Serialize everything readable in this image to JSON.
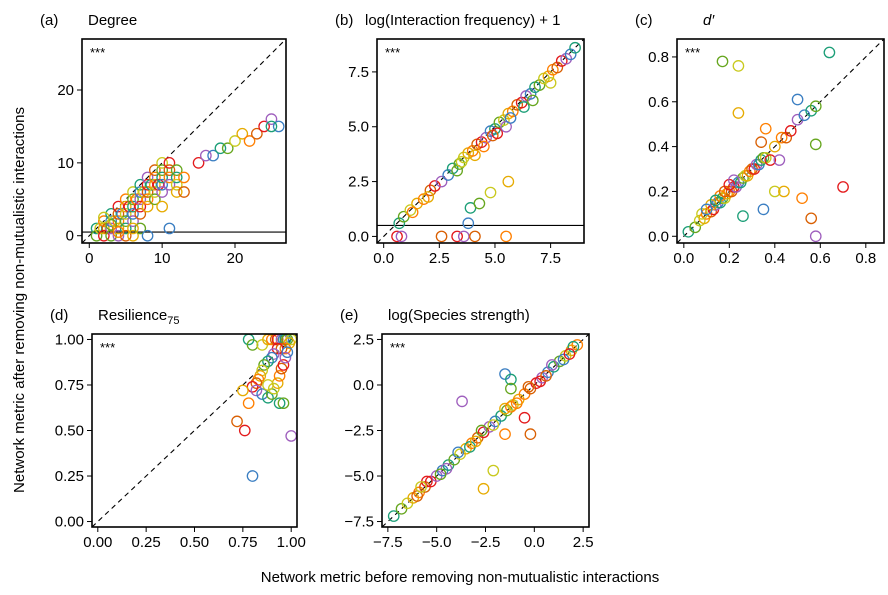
{
  "figure": {
    "xlabel": "Network metric before removing non-mutualistic interactions",
    "ylabel": "Network metric after removing non-mutualistic interactions"
  },
  "colors": [
    "#1b9e77",
    "#66a61e",
    "#c9c91e",
    "#e6ab02",
    "#ff7f00",
    "#d95f02",
    "#e31a1c",
    "#9e5ebd",
    "#3a7ec2"
  ],
  "chart_data": [
    {
      "type": "scatter",
      "panel": "(a)",
      "title": "Degree",
      "significance": "***",
      "xlim": [
        -1,
        27
      ],
      "ylim": [
        -1,
        27
      ],
      "xticks": [
        0,
        10,
        20
      ],
      "yticks": [
        0,
        10,
        20
      ],
      "reference_line": {
        "style": "dashed",
        "slope": 1,
        "intercept": 0
      },
      "hline": 0.5,
      "points": [
        [
          1,
          1
        ],
        [
          1,
          0
        ],
        [
          1.5,
          1
        ],
        [
          2,
          1
        ],
        [
          2,
          2
        ],
        [
          2.5,
          1
        ],
        [
          2,
          0
        ],
        [
          3,
          1
        ],
        [
          3,
          2
        ],
        [
          3,
          3
        ],
        [
          3,
          0
        ],
        [
          3.5,
          2
        ],
        [
          4,
          1
        ],
        [
          4,
          2
        ],
        [
          4,
          3
        ],
        [
          4,
          4
        ],
        [
          4,
          0
        ],
        [
          4.5,
          3
        ],
        [
          5,
          1
        ],
        [
          5,
          2
        ],
        [
          5,
          3
        ],
        [
          5,
          4
        ],
        [
          5,
          5
        ],
        [
          5,
          0
        ],
        [
          5.5,
          4
        ],
        [
          6,
          2
        ],
        [
          6,
          3
        ],
        [
          6,
          4
        ],
        [
          6,
          5
        ],
        [
          6,
          6
        ],
        [
          6,
          0
        ],
        [
          6.5,
          5
        ],
        [
          7,
          3
        ],
        [
          7,
          4
        ],
        [
          7,
          5
        ],
        [
          7,
          6
        ],
        [
          7,
          7
        ],
        [
          7,
          1
        ],
        [
          7.5,
          6
        ],
        [
          8,
          4
        ],
        [
          8,
          5
        ],
        [
          8,
          6
        ],
        [
          8,
          7
        ],
        [
          8,
          8
        ],
        [
          8,
          0
        ],
        [
          8.5,
          7
        ],
        [
          9,
          5
        ],
        [
          9,
          6
        ],
        [
          9,
          7
        ],
        [
          9,
          8
        ],
        [
          9,
          9
        ],
        [
          9.5,
          7
        ],
        [
          10,
          6
        ],
        [
          10,
          7
        ],
        [
          10,
          8
        ],
        [
          10,
          9
        ],
        [
          10,
          10
        ],
        [
          10,
          4
        ],
        [
          11,
          8
        ],
        [
          11,
          9
        ],
        [
          11,
          10
        ],
        [
          11,
          7
        ],
        [
          11,
          1
        ],
        [
          12,
          8
        ],
        [
          12,
          9
        ],
        [
          12,
          7
        ],
        [
          12,
          6
        ],
        [
          13,
          8
        ],
        [
          13,
          6
        ],
        [
          15,
          10
        ],
        [
          16,
          11
        ],
        [
          17,
          11
        ],
        [
          18,
          12
        ],
        [
          19,
          12
        ],
        [
          20,
          13
        ],
        [
          21,
          14
        ],
        [
          22,
          13
        ],
        [
          23,
          14
        ],
        [
          24,
          15
        ],
        [
          25,
          16
        ],
        [
          26,
          15
        ],
        [
          25,
          15
        ],
        [
          3,
          1.5
        ],
        [
          2,
          2.5
        ],
        [
          6,
          1
        ],
        [
          4,
          0.5
        ]
      ]
    },
    {
      "type": "scatter",
      "panel": "(b)",
      "title": "log(Interaction frequency) + 1",
      "significance": "***",
      "xlim": [
        -0.3,
        9
      ],
      "ylim": [
        -0.3,
        9
      ],
      "xticks": [
        0.0,
        2.5,
        5.0,
        7.5
      ],
      "yticks": [
        0.0,
        2.5,
        5.0,
        7.5
      ],
      "reference_line": {
        "style": "dashed",
        "slope": 1,
        "intercept": 0
      },
      "hline": 0.5,
      "points": [
        [
          0.7,
          0.6
        ],
        [
          0.9,
          0.9
        ],
        [
          1.2,
          1.2
        ],
        [
          1.5,
          1.5
        ],
        [
          1.8,
          1.7
        ],
        [
          2.1,
          2.1
        ],
        [
          2.3,
          2.3
        ],
        [
          2.6,
          2.5
        ],
        [
          2.9,
          2.8
        ],
        [
          3.1,
          3.1
        ],
        [
          3.4,
          3.3
        ],
        [
          3.6,
          3.6
        ],
        [
          3.8,
          3.8
        ],
        [
          4.0,
          3.9
        ],
        [
          4.2,
          4.2
        ],
        [
          4.4,
          4.3
        ],
        [
          4.6,
          4.5
        ],
        [
          4.8,
          4.8
        ],
        [
          5.0,
          4.9
        ],
        [
          5.2,
          5.2
        ],
        [
          5.4,
          5.3
        ],
        [
          5.6,
          5.6
        ],
        [
          5.8,
          5.7
        ],
        [
          6.0,
          6.0
        ],
        [
          6.2,
          6.1
        ],
        [
          6.4,
          6.4
        ],
        [
          6.6,
          6.5
        ],
        [
          6.8,
          6.8
        ],
        [
          7.0,
          6.9
        ],
        [
          7.2,
          7.2
        ],
        [
          7.4,
          7.3
        ],
        [
          7.6,
          7.6
        ],
        [
          7.8,
          7.7
        ],
        [
          8.0,
          8.0
        ],
        [
          8.2,
          8.1
        ],
        [
          8.4,
          8.3
        ],
        [
          8.6,
          8.6
        ],
        [
          3.3,
          3.0
        ],
        [
          3.5,
          3.4
        ],
        [
          4.1,
          3.7
        ],
        [
          4.5,
          4.1
        ],
        [
          4.9,
          4.6
        ],
        [
          5.1,
          4.7
        ],
        [
          5.5,
          5.0
        ],
        [
          5.7,
          5.4
        ],
        [
          6.3,
          5.9
        ],
        [
          6.7,
          6.2
        ],
        [
          7.5,
          7.0
        ],
        [
          2.0,
          1.8
        ],
        [
          1.3,
          1.1
        ],
        [
          2.6,
          0.0
        ],
        [
          3.3,
          0.0
        ],
        [
          3.6,
          0.0
        ],
        [
          3.8,
          0.6
        ],
        [
          3.9,
          1.3
        ],
        [
          4.3,
          1.5
        ],
        [
          4.8,
          2.0
        ],
        [
          5.6,
          2.5
        ],
        [
          5.5,
          0.0
        ],
        [
          4.1,
          0.0
        ],
        [
          0.6,
          0.0
        ],
        [
          0.8,
          0.0
        ]
      ]
    },
    {
      "type": "scatter",
      "panel": "(c)",
      "title": "d′",
      "significance": "***",
      "xlim": [
        -0.03,
        0.88
      ],
      "ylim": [
        -0.03,
        0.88
      ],
      "xticks": [
        0.0,
        0.2,
        0.4,
        0.6,
        0.8
      ],
      "yticks": [
        0.0,
        0.2,
        0.4,
        0.6,
        0.8
      ],
      "reference_line": {
        "style": "dashed",
        "slope": 1,
        "intercept": 0
      },
      "points": [
        [
          0.02,
          0.02
        ],
        [
          0.05,
          0.04
        ],
        [
          0.07,
          0.07
        ],
        [
          0.09,
          0.08
        ],
        [
          0.1,
          0.1
        ],
        [
          0.12,
          0.11
        ],
        [
          0.13,
          0.12
        ],
        [
          0.14,
          0.14
        ],
        [
          0.15,
          0.15
        ],
        [
          0.16,
          0.15
        ],
        [
          0.17,
          0.17
        ],
        [
          0.18,
          0.17
        ],
        [
          0.19,
          0.19
        ],
        [
          0.2,
          0.2
        ],
        [
          0.21,
          0.2
        ],
        [
          0.22,
          0.22
        ],
        [
          0.23,
          0.22
        ],
        [
          0.24,
          0.24
        ],
        [
          0.25,
          0.24
        ],
        [
          0.26,
          0.26
        ],
        [
          0.27,
          0.27
        ],
        [
          0.28,
          0.27
        ],
        [
          0.29,
          0.29
        ],
        [
          0.3,
          0.3
        ],
        [
          0.31,
          0.3
        ],
        [
          0.32,
          0.32
        ],
        [
          0.33,
          0.32
        ],
        [
          0.34,
          0.34
        ],
        [
          0.35,
          0.35
        ],
        [
          0.36,
          0.35
        ],
        [
          0.4,
          0.4
        ],
        [
          0.43,
          0.44
        ],
        [
          0.45,
          0.44
        ],
        [
          0.47,
          0.47
        ],
        [
          0.5,
          0.52
        ],
        [
          0.53,
          0.54
        ],
        [
          0.56,
          0.56
        ],
        [
          0.58,
          0.58
        ],
        [
          0.08,
          0.1
        ],
        [
          0.12,
          0.14
        ],
        [
          0.16,
          0.18
        ],
        [
          0.18,
          0.2
        ],
        [
          0.2,
          0.23
        ],
        [
          0.22,
          0.25
        ],
        [
          0.1,
          0.12
        ],
        [
          0.14,
          0.16
        ],
        [
          0.17,
          0.78
        ],
        [
          0.24,
          0.76
        ],
        [
          0.24,
          0.55
        ],
        [
          0.36,
          0.48
        ],
        [
          0.34,
          0.42
        ],
        [
          0.38,
          0.34
        ],
        [
          0.42,
          0.34
        ],
        [
          0.5,
          0.61
        ],
        [
          0.64,
          0.82
        ],
        [
          0.58,
          0.41
        ],
        [
          0.4,
          0.2
        ],
        [
          0.44,
          0.2
        ],
        [
          0.52,
          0.17
        ],
        [
          0.56,
          0.08
        ],
        [
          0.7,
          0.22
        ],
        [
          0.58,
          0.0
        ],
        [
          0.35,
          0.12
        ],
        [
          0.26,
          0.09
        ]
      ]
    },
    {
      "type": "scatter",
      "panel": "(d)",
      "title": "Resilience",
      "title_subscript": "75",
      "significance": "***",
      "xlim": [
        -0.03,
        1.03
      ],
      "ylim": [
        -0.03,
        1.03
      ],
      "xticks": [
        0.0,
        0.25,
        0.5,
        0.75,
        1.0
      ],
      "yticks": [
        0.0,
        0.25,
        0.5,
        0.75,
        1.0
      ],
      "reference_line": {
        "style": "dashed",
        "slope": 1,
        "intercept": 0
      },
      "points": [
        [
          0.78,
          1.0
        ],
        [
          0.8,
          0.97
        ],
        [
          0.85,
          0.97
        ],
        [
          0.88,
          1.0
        ],
        [
          0.9,
          1.0
        ],
        [
          0.92,
          1.0
        ],
        [
          0.93,
          1.0
        ],
        [
          0.95,
          1.0
        ],
        [
          0.96,
          1.0
        ],
        [
          0.97,
          1.0
        ],
        [
          0.98,
          1.0
        ],
        [
          1.0,
          1.0
        ],
        [
          0.99,
          0.98
        ],
        [
          0.97,
          0.95
        ],
        [
          0.95,
          0.95
        ],
        [
          0.93,
          0.95
        ],
        [
          0.91,
          0.92
        ],
        [
          0.9,
          0.9
        ],
        [
          0.88,
          0.88
        ],
        [
          0.86,
          0.86
        ],
        [
          0.85,
          0.83
        ],
        [
          0.84,
          0.8
        ],
        [
          0.83,
          0.78
        ],
        [
          0.82,
          0.76
        ],
        [
          0.8,
          0.74
        ],
        [
          0.82,
          0.72
        ],
        [
          0.85,
          0.7
        ],
        [
          0.88,
          0.68
        ],
        [
          0.9,
          0.7
        ],
        [
          0.91,
          0.73
        ],
        [
          0.93,
          0.76
        ],
        [
          0.94,
          0.8
        ],
        [
          0.95,
          0.84
        ],
        [
          0.96,
          0.86
        ],
        [
          0.97,
          0.9
        ],
        [
          0.98,
          0.93
        ],
        [
          0.94,
          0.65
        ],
        [
          0.96,
          0.65
        ],
        [
          0.88,
          0.75
        ],
        [
          0.75,
          0.72
        ],
        [
          0.78,
          0.65
        ],
        [
          0.72,
          0.55
        ],
        [
          0.76,
          0.5
        ],
        [
          1.0,
          0.47
        ],
        [
          0.8,
          0.25
        ]
      ]
    },
    {
      "type": "scatter",
      "panel": "(e)",
      "title": "log(Species strength)",
      "significance": "***",
      "xlim": [
        -7.8,
        2.8
      ],
      "ylim": [
        -7.8,
        2.8
      ],
      "xticks": [
        -7.5,
        -5.0,
        -2.5,
        0.0,
        2.5
      ],
      "yticks": [
        -7.5,
        -5.0,
        -2.5,
        0.0,
        2.5
      ],
      "reference_line": {
        "style": "dashed",
        "slope": 1,
        "intercept": 0
      },
      "points": [
        [
          -7.2,
          -7.2
        ],
        [
          -6.8,
          -6.8
        ],
        [
          -6.5,
          -6.5
        ],
        [
          -6.2,
          -6.2
        ],
        [
          -5.9,
          -5.9
        ],
        [
          -5.6,
          -5.6
        ],
        [
          -5.3,
          -5.3
        ],
        [
          -5.0,
          -5.0
        ],
        [
          -4.7,
          -4.7
        ],
        [
          -4.4,
          -4.4
        ],
        [
          -4.1,
          -4.1
        ],
        [
          -3.8,
          -3.8
        ],
        [
          -3.5,
          -3.5
        ],
        [
          -3.2,
          -3.2
        ],
        [
          -2.9,
          -2.9
        ],
        [
          -2.6,
          -2.6
        ],
        [
          -2.3,
          -2.3
        ],
        [
          -2.0,
          -2.0
        ],
        [
          -1.7,
          -1.7
        ],
        [
          -1.4,
          -1.4
        ],
        [
          -1.1,
          -1.1
        ],
        [
          -0.8,
          -0.8
        ],
        [
          -0.5,
          -0.5
        ],
        [
          -0.2,
          -0.2
        ],
        [
          0.1,
          0.1
        ],
        [
          0.4,
          0.4
        ],
        [
          0.7,
          0.7
        ],
        [
          1.0,
          1.0
        ],
        [
          1.3,
          1.3
        ],
        [
          1.6,
          1.6
        ],
        [
          1.9,
          1.9
        ],
        [
          2.2,
          2.2
        ],
        [
          -6.0,
          -6.1
        ],
        [
          -5.5,
          -5.3
        ],
        [
          -4.5,
          -4.6
        ],
        [
          -3.9,
          -3.7
        ],
        [
          -3.3,
          -3.4
        ],
        [
          -2.7,
          -2.5
        ],
        [
          -2.1,
          -2.2
        ],
        [
          -1.5,
          -1.3
        ],
        [
          -0.9,
          -1.0
        ],
        [
          -0.3,
          -0.1
        ],
        [
          0.3,
          0.2
        ],
        [
          0.9,
          1.1
        ],
        [
          1.5,
          1.4
        ],
        [
          2.0,
          2.1
        ],
        [
          -4.8,
          -4.9
        ],
        [
          -5.8,
          -5.6
        ],
        [
          -3.0,
          -3.1
        ],
        [
          -1.2,
          -1.2
        ],
        [
          0.6,
          0.5
        ],
        [
          1.8,
          1.7
        ],
        [
          -3.7,
          -0.9
        ],
        [
          -1.5,
          0.6
        ],
        [
          -1.2,
          0.3
        ],
        [
          -1.2,
          -0.2
        ],
        [
          -2.1,
          -4.7
        ],
        [
          -2.6,
          -5.7
        ],
        [
          -1.5,
          -2.7
        ],
        [
          -0.2,
          -2.7
        ],
        [
          -0.5,
          -1.8
        ]
      ]
    }
  ]
}
